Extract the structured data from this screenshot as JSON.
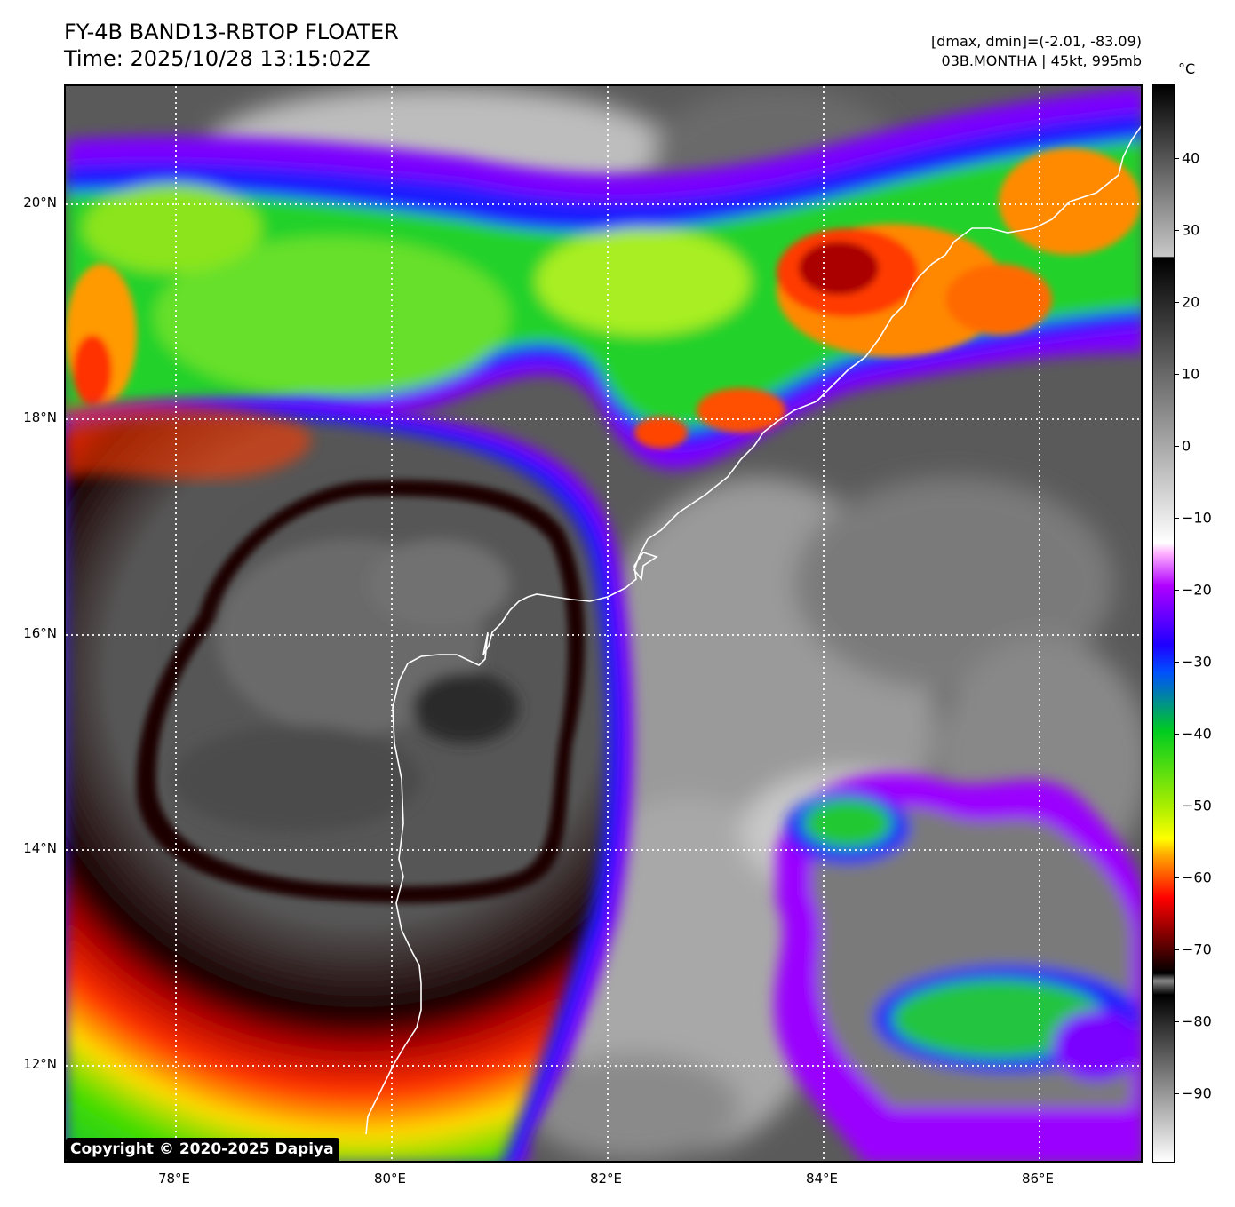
{
  "header": {
    "title_line1": "FY-4B BAND13-RBTOP FLOATER",
    "title_line2": "Time: 2025/10/28 13:15:02Z",
    "info_line1": "[dmax, dmin]=(-2.01, -83.09)",
    "info_line2": "03B.MONTHA | 45kt, 995mb"
  },
  "map": {
    "lat_labels": [
      "20°N",
      "18°N",
      "16°N",
      "14°N",
      "12°N"
    ],
    "lon_labels": [
      "78°E",
      "80°E",
      "82°E",
      "84°E",
      "86°E"
    ],
    "grid_style": "dotted white",
    "coastline_color": "#ffffff"
  },
  "colorbar": {
    "unit": "°C",
    "tick_labels": [
      "40",
      "30",
      "20",
      "10",
      "0",
      "−10",
      "−20",
      "−30",
      "−40",
      "−50",
      "−60",
      "−70",
      "−80",
      "−90"
    ]
  },
  "copyright": "Copyright © 2020-2025 Dapiya"
}
